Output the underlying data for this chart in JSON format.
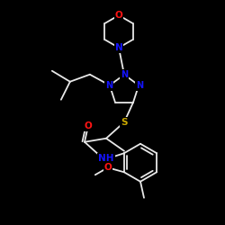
{
  "background_color": "#000000",
  "bond_color": "#e8e8e8",
  "atom_colors": {
    "N": "#1414ff",
    "O": "#ff1414",
    "S": "#ccaa00",
    "C": "#e8e8e8",
    "H": "#e8e8e8"
  },
  "figsize": [
    2.5,
    2.5
  ],
  "dpi": 100
}
